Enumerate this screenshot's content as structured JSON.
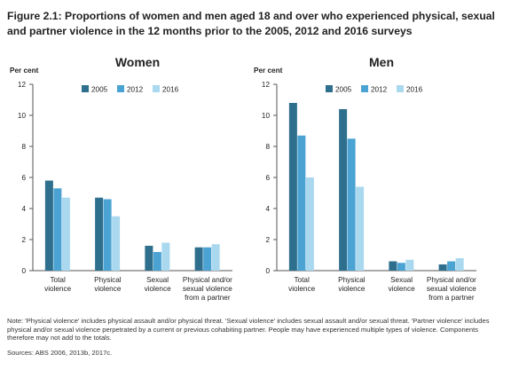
{
  "figure": {
    "title": "Figure 2.1: Proportions of women and men aged 18 and over who experienced physical, sexual and partner violence in the 12 months prior to the 2005, 2012 and 2016 surveys",
    "note": "Note: 'Physical violence' includes physical assault and/or physical threat. 'Sexual violence' includes sexual assault and/or sexual threat. 'Partner violence' includes physical and/or sexual violence perpetrated by a current or previous cohabiting partner. People may have experienced multiple types of violence. Components therefore may not add to the totals.",
    "sources": "Sources: ABS 2006, 2013b, 2017c."
  },
  "colors": {
    "2005": "#2e6f8e",
    "2012": "#4ba3d3",
    "2016": "#a9d8ef",
    "axis": "#555555"
  },
  "chart_data": [
    {
      "type": "bar",
      "title": "Women",
      "ylabel": "Per cent",
      "ylim": [
        0,
        12
      ],
      "yticks": [
        0,
        2,
        4,
        6,
        8,
        10,
        12
      ],
      "categories": [
        [
          "Total",
          "violence"
        ],
        [
          "Physical",
          "violence"
        ],
        [
          "Sexual",
          "violence"
        ],
        [
          "Physical and/or",
          "sexual violence",
          "from a partner"
        ]
      ],
      "series": [
        {
          "name": "2005",
          "values": [
            5.8,
            4.7,
            1.6,
            1.5
          ]
        },
        {
          "name": "2012",
          "values": [
            5.3,
            4.6,
            1.2,
            1.5
          ]
        },
        {
          "name": "2016",
          "values": [
            4.7,
            3.5,
            1.8,
            1.7
          ]
        }
      ],
      "legend": "top-center"
    },
    {
      "type": "bar",
      "title": "Men",
      "ylabel": "Per cent",
      "ylim": [
        0,
        12
      ],
      "yticks": [
        0,
        2,
        4,
        6,
        8,
        10,
        12
      ],
      "categories": [
        [
          "Total",
          "violence"
        ],
        [
          "Physical",
          "violence"
        ],
        [
          "Sexual",
          "violence"
        ],
        [
          "Physical and/or",
          "sexual violence",
          "from a partner"
        ]
      ],
      "series": [
        {
          "name": "2005",
          "values": [
            10.8,
            10.4,
            0.6,
            0.4
          ]
        },
        {
          "name": "2012",
          "values": [
            8.7,
            8.5,
            0.5,
            0.6
          ]
        },
        {
          "name": "2016",
          "values": [
            6.0,
            5.4,
            0.7,
            0.8
          ]
        }
      ],
      "legend": "top-center"
    }
  ]
}
